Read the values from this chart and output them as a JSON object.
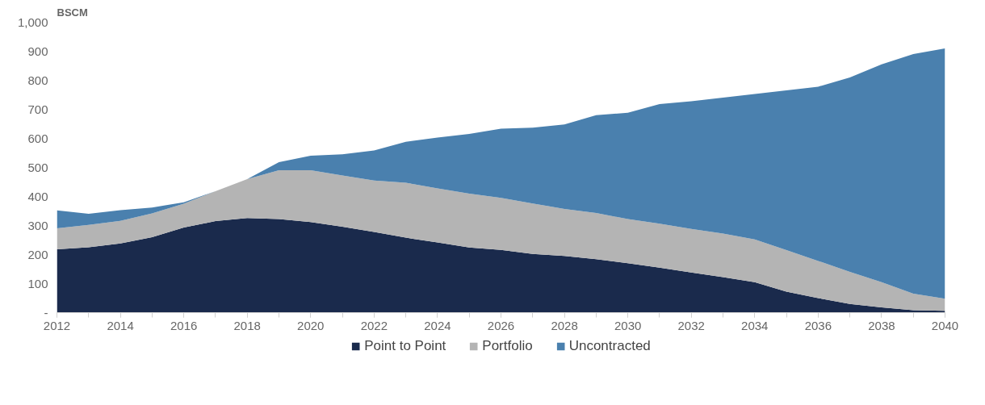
{
  "chart_data": {
    "type": "area",
    "stacked": true,
    "ylabel": "BSCM",
    "x": [
      2012,
      2013,
      2014,
      2015,
      2016,
      2017,
      2018,
      2019,
      2020,
      2021,
      2022,
      2023,
      2024,
      2025,
      2026,
      2027,
      2028,
      2029,
      2030,
      2031,
      2032,
      2033,
      2034,
      2035,
      2036,
      2037,
      2038,
      2039,
      2040
    ],
    "series": [
      {
        "name": "Point to Point",
        "color": "#1a2a4c",
        "values": [
          218,
          225,
          238,
          260,
          293,
          315,
          326,
          322,
          312,
          296,
          278,
          258,
          242,
          224,
          216,
          202,
          195,
          184,
          170,
          155,
          138,
          122,
          105,
          72,
          50,
          30,
          18,
          8,
          6
        ]
      },
      {
        "name": "Portfolio",
        "color": "#b4b4b4",
        "values": [
          72,
          77,
          78,
          82,
          82,
          103,
          134,
          168,
          178,
          176,
          177,
          189,
          186,
          186,
          179,
          174,
          162,
          159,
          152,
          151,
          150,
          150,
          147,
          143,
          128,
          110,
          87,
          57,
          42
        ]
      },
      {
        "name": "Uncontracted",
        "color": "#4a80ae",
        "values": [
          62,
          38,
          37,
          20,
          5,
          0,
          0,
          28,
          50,
          73,
          103,
          141,
          175,
          205,
          238,
          261,
          291,
          337,
          366,
          412,
          440,
          468,
          501,
          550,
          600,
          670,
          750,
          825,
          862
        ]
      }
    ],
    "xlim": [
      2012,
      2040
    ],
    "ylim": [
      0,
      1000
    ],
    "xticks": [
      2012,
      2014,
      2016,
      2018,
      2020,
      2022,
      2024,
      2026,
      2028,
      2030,
      2032,
      2034,
      2036,
      2038,
      2040
    ],
    "yticks": [
      {
        "value": 0,
        "label": "-"
      },
      100,
      200,
      300,
      400,
      500,
      600,
      700,
      800,
      900,
      {
        "value": 1000,
        "label": "1,000"
      }
    ],
    "grid": false,
    "legend": "bottom"
  }
}
